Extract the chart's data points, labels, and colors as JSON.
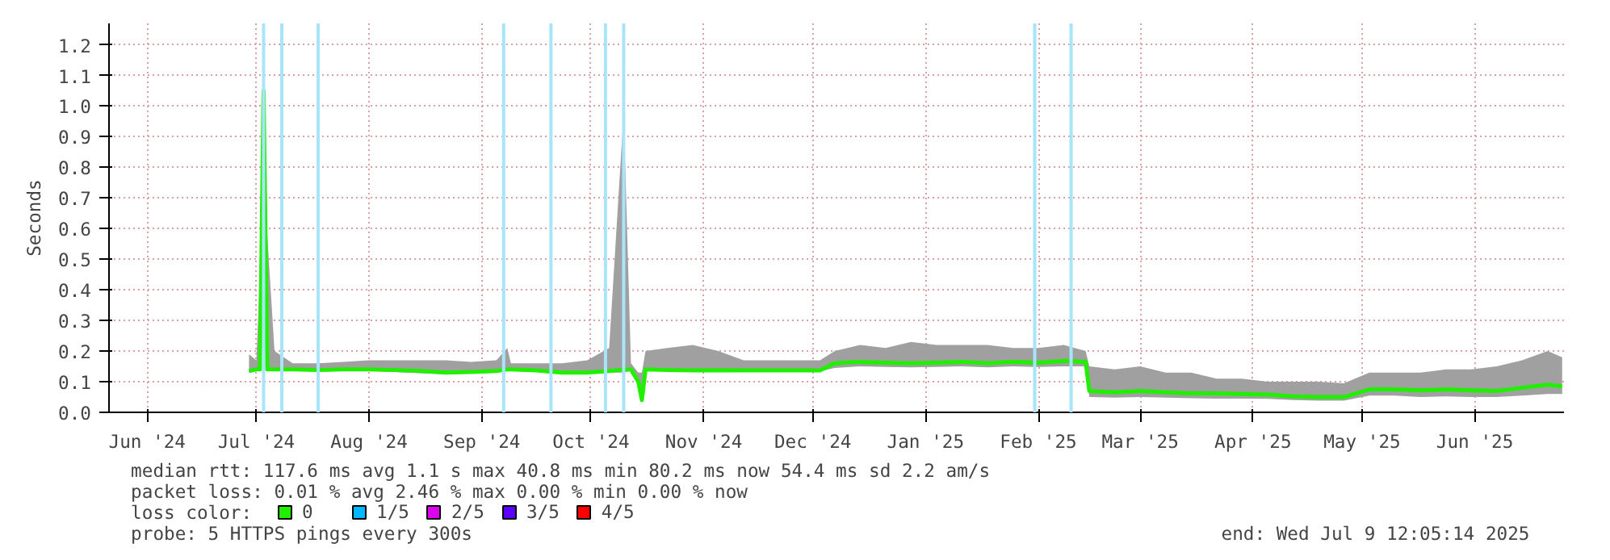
{
  "chart_data": {
    "type": "line",
    "ylabel": "Seconds",
    "legend_title": "loss color:",
    "legend": "bottom left",
    "grid": true,
    "marker": "none",
    "line_style": "solid",
    "xlim": [
      "2024-06-04T12:00",
      "2025-07-09T12:05"
    ],
    "xticks": [
      {
        "value": "2024-06-15",
        "label": "Jun '24"
      },
      {
        "value": "2024-07-15",
        "label": "Jul '24"
      },
      {
        "value": "2024-08-15",
        "label": "Aug '24"
      },
      {
        "value": "2024-09-15",
        "label": "Sep '24"
      },
      {
        "value": "2024-10-15",
        "label": "Oct '24"
      },
      {
        "value": "2024-11-15",
        "label": "Nov '24"
      },
      {
        "value": "2024-12-15",
        "label": "Dec '24"
      },
      {
        "value": "2025-01-15",
        "label": "Jan '25"
      },
      {
        "value": "2025-02-15",
        "label": "Feb '25"
      },
      {
        "value": "2025-03-15",
        "label": "Mar '25"
      },
      {
        "value": "2025-04-15",
        "label": "Apr '25"
      },
      {
        "value": "2025-05-15",
        "label": "May '25"
      },
      {
        "value": "2025-06-15",
        "label": "Jun '25"
      }
    ],
    "ylim": [
      0,
      1.27
    ],
    "yticks": [
      {
        "value": 0,
        "label": "0.0"
      },
      {
        "value": 0.1,
        "label": "0.1"
      },
      {
        "value": 0.2,
        "label": "0.2"
      },
      {
        "value": 0.3,
        "label": "0.3"
      },
      {
        "value": 0.4,
        "label": "0.4"
      },
      {
        "value": 0.5,
        "label": "0.5"
      },
      {
        "value": 0.6,
        "label": "0.6"
      },
      {
        "value": 0.7,
        "label": "0.7"
      },
      {
        "value": 0.8,
        "label": "0.8"
      },
      {
        "value": 0.9,
        "label": "0.9"
      },
      {
        "value": 1.0,
        "label": "1.0"
      },
      {
        "value": 1.1,
        "label": "1.1"
      },
      {
        "value": 1.2,
        "label": "1.2"
      }
    ],
    "series": [
      {
        "name": "0",
        "color": "#20f000",
        "x": [
          "2024-07-13",
          "2024-07-15",
          "2024-07-16",
          "2024-07-17",
          "2024-07-18",
          "2024-07-20",
          "2024-07-25",
          "2024-08-01",
          "2024-08-08",
          "2024-08-15",
          "2024-08-22",
          "2024-08-29",
          "2024-09-05",
          "2024-09-12",
          "2024-09-19",
          "2024-09-22",
          "2024-09-23",
          "2024-09-30",
          "2024-10-07",
          "2024-10-14",
          "2024-10-20",
          "2024-10-24",
          "2024-10-26",
          "2024-10-28",
          "2024-10-29",
          "2024-10-30",
          "2024-11-05",
          "2024-11-12",
          "2024-11-19",
          "2024-11-26",
          "2024-12-03",
          "2024-12-10",
          "2024-12-17",
          "2024-12-21",
          "2024-12-28",
          "2025-01-04",
          "2025-01-11",
          "2025-01-18",
          "2025-01-25",
          "2025-02-01",
          "2025-02-08",
          "2025-02-15",
          "2025-02-22",
          "2025-02-28",
          "2025-03-01",
          "2025-03-08",
          "2025-03-15",
          "2025-03-22",
          "2025-03-29",
          "2025-04-05",
          "2025-04-12",
          "2025-04-19",
          "2025-04-26",
          "2025-05-03",
          "2025-05-10",
          "2025-05-17",
          "2025-05-24",
          "2025-05-31",
          "2025-06-07",
          "2025-06-14",
          "2025-06-21",
          "2025-06-28",
          "2025-07-05",
          "2025-07-09"
        ],
        "values": [
          0.135,
          0.14,
          0.14,
          1.05,
          0.14,
          0.14,
          0.14,
          0.138,
          0.14,
          0.14,
          0.138,
          0.135,
          0.13,
          0.132,
          0.135,
          0.14,
          0.14,
          0.137,
          0.13,
          0.13,
          0.135,
          0.14,
          0.14,
          0.1,
          0.04,
          0.14,
          0.138,
          0.137,
          0.138,
          0.137,
          0.137,
          0.137,
          0.137,
          0.16,
          0.165,
          0.162,
          0.16,
          0.162,
          0.165,
          0.16,
          0.165,
          0.162,
          0.168,
          0.165,
          0.07,
          0.065,
          0.07,
          0.065,
          0.062,
          0.062,
          0.06,
          0.058,
          0.052,
          0.05,
          0.05,
          0.075,
          0.075,
          0.072,
          0.075,
          0.072,
          0.07,
          0.08,
          0.09,
          0.085
        ],
        "lower": [
          0.13,
          0.135,
          0.135,
          0.43,
          0.135,
          0.135,
          0.135,
          0.133,
          0.135,
          0.135,
          0.132,
          0.128,
          0.125,
          0.127,
          0.13,
          0.135,
          0.135,
          0.132,
          0.125,
          0.125,
          0.13,
          0.13,
          0.135,
          0.09,
          0.04,
          0.135,
          0.135,
          0.134,
          0.135,
          0.134,
          0.134,
          0.134,
          0.134,
          0.145,
          0.15,
          0.148,
          0.147,
          0.148,
          0.15,
          0.147,
          0.15,
          0.148,
          0.15,
          0.15,
          0.05,
          0.048,
          0.05,
          0.048,
          0.046,
          0.045,
          0.045,
          0.044,
          0.04,
          0.038,
          0.038,
          0.055,
          0.055,
          0.05,
          0.052,
          0.05,
          0.05,
          0.055,
          0.06,
          0.06
        ],
        "upper": [
          0.19,
          0.17,
          0.45,
          1.26,
          0.58,
          0.2,
          0.16,
          0.16,
          0.165,
          0.17,
          0.17,
          0.17,
          0.17,
          0.165,
          0.17,
          0.21,
          0.16,
          0.16,
          0.16,
          0.17,
          0.21,
          0.98,
          0.16,
          0.13,
          0.13,
          0.2,
          0.21,
          0.22,
          0.2,
          0.17,
          0.17,
          0.17,
          0.17,
          0.2,
          0.22,
          0.21,
          0.23,
          0.22,
          0.22,
          0.22,
          0.21,
          0.21,
          0.22,
          0.2,
          0.15,
          0.14,
          0.15,
          0.13,
          0.13,
          0.11,
          0.11,
          0.1,
          0.1,
          0.1,
          0.095,
          0.13,
          0.13,
          0.13,
          0.14,
          0.14,
          0.15,
          0.17,
          0.2,
          0.18
        ]
      },
      {
        "name": "1/5",
        "color": "#00b8ff"
      },
      {
        "name": "2/5",
        "color": "#e000f0"
      },
      {
        "name": "3/5",
        "color": "#5a00ff"
      },
      {
        "name": "4/5",
        "color": "#ff0000"
      }
    ],
    "ref_lines": [
      {
        "axis": "x",
        "value": "2024-07-17",
        "color": "#a8e4fa"
      },
      {
        "axis": "x",
        "value": "2024-07-22",
        "color": "#a8e4fa"
      },
      {
        "axis": "x",
        "value": "2024-08-01",
        "color": "#a8e4fa"
      },
      {
        "axis": "x",
        "value": "2024-09-21",
        "color": "#a8e4fa"
      },
      {
        "axis": "x",
        "value": "2024-10-04",
        "color": "#a8e4fa"
      },
      {
        "axis": "x",
        "value": "2024-10-19",
        "color": "#a8e4fa"
      },
      {
        "axis": "x",
        "value": "2024-10-24",
        "color": "#a8e4fa"
      },
      {
        "axis": "x",
        "value": "2025-02-14",
        "color": "#a8e4fa"
      },
      {
        "axis": "x",
        "value": "2025-02-24",
        "color": "#a8e4fa"
      }
    ],
    "annotations": [
      "median rtt:  117.6 ms avg  1.1  s max  40.8 ms min  80.2 ms now  54.4 ms sd  2.2   am/s",
      "packet loss: 0.01 % avg  2.46 % max  0.00 % min  0.00 % now",
      "probe:       5 HTTPS pings every 300s",
      "end: Wed Jul  9 12:05:14 2025"
    ]
  }
}
